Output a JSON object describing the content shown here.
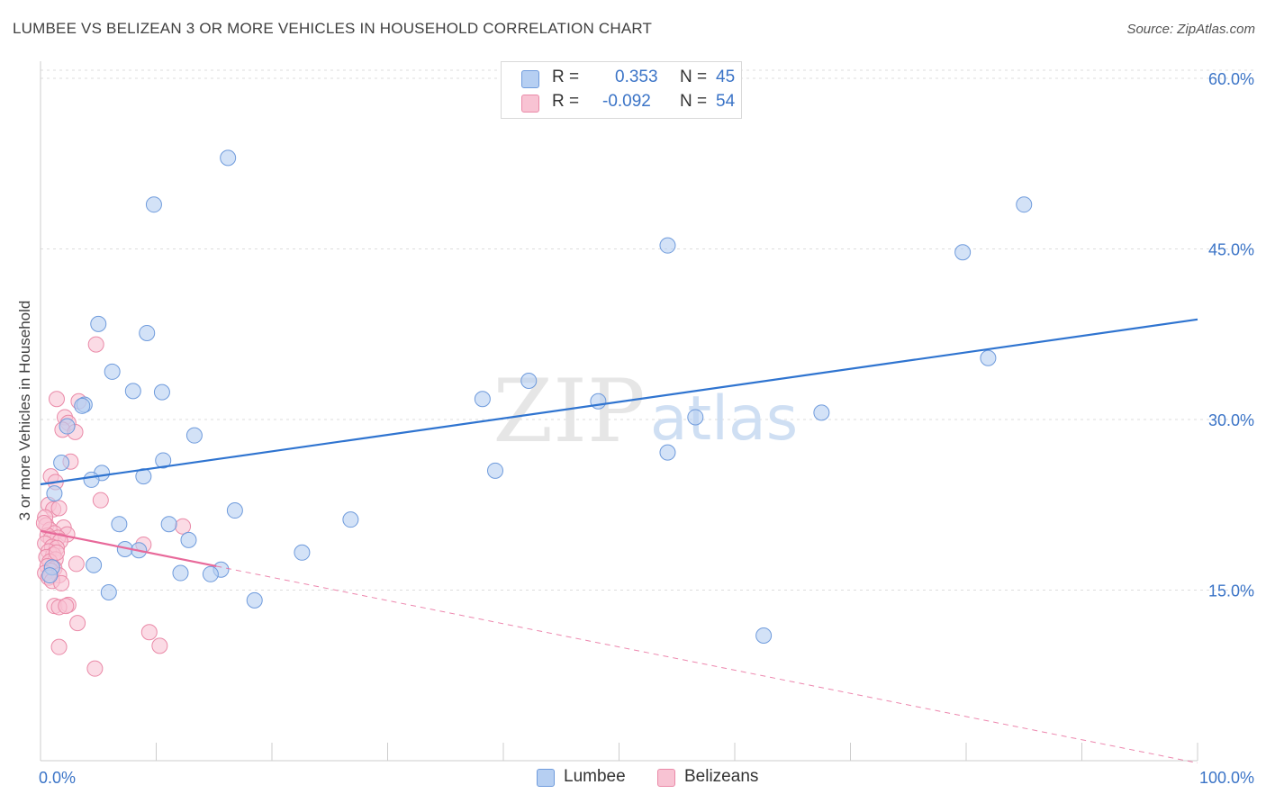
{
  "title": "LUMBEE VS BELIZEAN 3 OR MORE VEHICLES IN HOUSEHOLD CORRELATION CHART",
  "source": "Source: ZipAtlas.com",
  "watermark": {
    "zip": "ZIP",
    "atlas": "atlas"
  },
  "colors": {
    "lumbee_fill": "#b6cff2",
    "lumbee_stroke": "#6f9bdc",
    "lumbee_line": "#2f74d0",
    "belize_fill": "#f8c3d3",
    "belize_stroke": "#ea8aa8",
    "belize_line": "#e8699a",
    "axis_text": "#3b74c7",
    "grid": "#dddddd"
  },
  "legend": {
    "rows": [
      {
        "r_label": "R =",
        "r_value": "0.353",
        "n_label": "N =",
        "n_value": "45"
      },
      {
        "r_label": "R =",
        "r_value": "-0.092",
        "n_label": "N =",
        "n_value": "54"
      }
    ]
  },
  "chart_data": {
    "type": "scatter",
    "title": "LUMBEE VS BELIZEAN 3 OR MORE VEHICLES IN HOUSEHOLD CORRELATION CHART",
    "xlabel": "",
    "ylabel": "3 or more Vehicles in Household",
    "xlim": [
      0,
      100
    ],
    "ylim": [
      0,
      61.5
    ],
    "x_tick_labels": [
      "0.0%",
      "100.0%"
    ],
    "y_ticks": [
      15,
      30,
      45,
      60
    ],
    "y_tick_labels": [
      "15.0%",
      "30.0%",
      "45.0%",
      "60.0%"
    ],
    "grid": true,
    "legend_placement": "bottom-center",
    "series": [
      {
        "name": "Lumbee",
        "trend": {
          "x": [
            0,
            100
          ],
          "y": [
            24.3,
            38.8
          ]
        },
        "points": [
          {
            "x": 16.2,
            "y": 53.0
          },
          {
            "x": 9.8,
            "y": 48.9
          },
          {
            "x": 85.0,
            "y": 48.9
          },
          {
            "x": 54.2,
            "y": 45.3
          },
          {
            "x": 79.7,
            "y": 44.7
          },
          {
            "x": 5.0,
            "y": 38.4
          },
          {
            "x": 9.2,
            "y": 37.6
          },
          {
            "x": 81.9,
            "y": 35.4
          },
          {
            "x": 6.2,
            "y": 34.2
          },
          {
            "x": 42.2,
            "y": 33.4
          },
          {
            "x": 8.0,
            "y": 32.5
          },
          {
            "x": 10.5,
            "y": 32.4
          },
          {
            "x": 38.2,
            "y": 31.8
          },
          {
            "x": 48.2,
            "y": 31.6
          },
          {
            "x": 3.8,
            "y": 31.3
          },
          {
            "x": 3.6,
            "y": 31.2
          },
          {
            "x": 67.5,
            "y": 30.6
          },
          {
            "x": 56.6,
            "y": 30.2
          },
          {
            "x": 2.3,
            "y": 29.4
          },
          {
            "x": 13.3,
            "y": 28.6
          },
          {
            "x": 54.2,
            "y": 27.1
          },
          {
            "x": 1.8,
            "y": 26.2
          },
          {
            "x": 10.6,
            "y": 26.4
          },
          {
            "x": 39.3,
            "y": 25.5
          },
          {
            "x": 5.3,
            "y": 25.3
          },
          {
            "x": 8.9,
            "y": 25.0
          },
          {
            "x": 4.4,
            "y": 24.7
          },
          {
            "x": 1.2,
            "y": 23.5
          },
          {
            "x": 16.8,
            "y": 22.0
          },
          {
            "x": 26.8,
            "y": 21.2
          },
          {
            "x": 6.8,
            "y": 20.8
          },
          {
            "x": 11.1,
            "y": 20.8
          },
          {
            "x": 12.8,
            "y": 19.4
          },
          {
            "x": 7.3,
            "y": 18.6
          },
          {
            "x": 8.5,
            "y": 18.5
          },
          {
            "x": 22.6,
            "y": 18.3
          },
          {
            "x": 4.6,
            "y": 17.2
          },
          {
            "x": 15.6,
            "y": 16.8
          },
          {
            "x": 12.1,
            "y": 16.5
          },
          {
            "x": 14.7,
            "y": 16.4
          },
          {
            "x": 1.0,
            "y": 17.0
          },
          {
            "x": 0.8,
            "y": 16.3
          },
          {
            "x": 5.9,
            "y": 14.8
          },
          {
            "x": 18.5,
            "y": 14.1
          },
          {
            "x": 62.5,
            "y": 11.0
          }
        ]
      },
      {
        "name": "Belizeans",
        "trend": {
          "x": [
            0,
            15.2
          ],
          "y": [
            20.2,
            17.1
          ]
        },
        "trend_extension": {
          "x": [
            15.2,
            100
          ],
          "y": [
            17.1,
            -0.2
          ]
        },
        "points": [
          {
            "x": 4.8,
            "y": 36.6
          },
          {
            "x": 1.4,
            "y": 31.8
          },
          {
            "x": 3.3,
            "y": 31.6
          },
          {
            "x": 2.1,
            "y": 30.2
          },
          {
            "x": 2.4,
            "y": 29.7
          },
          {
            "x": 1.9,
            "y": 29.1
          },
          {
            "x": 3.0,
            "y": 28.9
          },
          {
            "x": 2.6,
            "y": 26.3
          },
          {
            "x": 0.9,
            "y": 25.0
          },
          {
            "x": 1.3,
            "y": 24.5
          },
          {
            "x": 5.2,
            "y": 22.9
          },
          {
            "x": 0.7,
            "y": 22.5
          },
          {
            "x": 1.1,
            "y": 22.1
          },
          {
            "x": 1.6,
            "y": 22.2
          },
          {
            "x": 0.4,
            "y": 21.4
          },
          {
            "x": 0.5,
            "y": 20.7
          },
          {
            "x": 12.3,
            "y": 20.6
          },
          {
            "x": 2.0,
            "y": 20.5
          },
          {
            "x": 0.8,
            "y": 20.3
          },
          {
            "x": 1.2,
            "y": 20.0
          },
          {
            "x": 2.3,
            "y": 19.9
          },
          {
            "x": 0.6,
            "y": 19.8
          },
          {
            "x": 1.5,
            "y": 19.6
          },
          {
            "x": 0.9,
            "y": 19.5
          },
          {
            "x": 1.7,
            "y": 19.3
          },
          {
            "x": 0.4,
            "y": 19.1
          },
          {
            "x": 1.0,
            "y": 18.8
          },
          {
            "x": 8.9,
            "y": 19.0
          },
          {
            "x": 1.4,
            "y": 18.7
          },
          {
            "x": 0.7,
            "y": 18.4
          },
          {
            "x": 1.1,
            "y": 18.1
          },
          {
            "x": 0.5,
            "y": 17.9
          },
          {
            "x": 1.3,
            "y": 17.7
          },
          {
            "x": 0.8,
            "y": 17.5
          },
          {
            "x": 3.1,
            "y": 17.3
          },
          {
            "x": 0.6,
            "y": 17.1
          },
          {
            "x": 1.2,
            "y": 16.9
          },
          {
            "x": 0.9,
            "y": 16.7
          },
          {
            "x": 0.4,
            "y": 16.5
          },
          {
            "x": 1.6,
            "y": 16.3
          },
          {
            "x": 0.7,
            "y": 16.1
          },
          {
            "x": 1.0,
            "y": 15.8
          },
          {
            "x": 1.8,
            "y": 15.6
          },
          {
            "x": 1.2,
            "y": 13.6
          },
          {
            "x": 2.4,
            "y": 13.7
          },
          {
            "x": 1.6,
            "y": 13.5
          },
          {
            "x": 2.2,
            "y": 13.6
          },
          {
            "x": 3.2,
            "y": 12.1
          },
          {
            "x": 9.4,
            "y": 11.3
          },
          {
            "x": 1.6,
            "y": 10.0
          },
          {
            "x": 10.3,
            "y": 10.1
          },
          {
            "x": 4.7,
            "y": 8.1
          },
          {
            "x": 0.3,
            "y": 20.9
          },
          {
            "x": 1.4,
            "y": 18.3
          }
        ]
      }
    ]
  }
}
